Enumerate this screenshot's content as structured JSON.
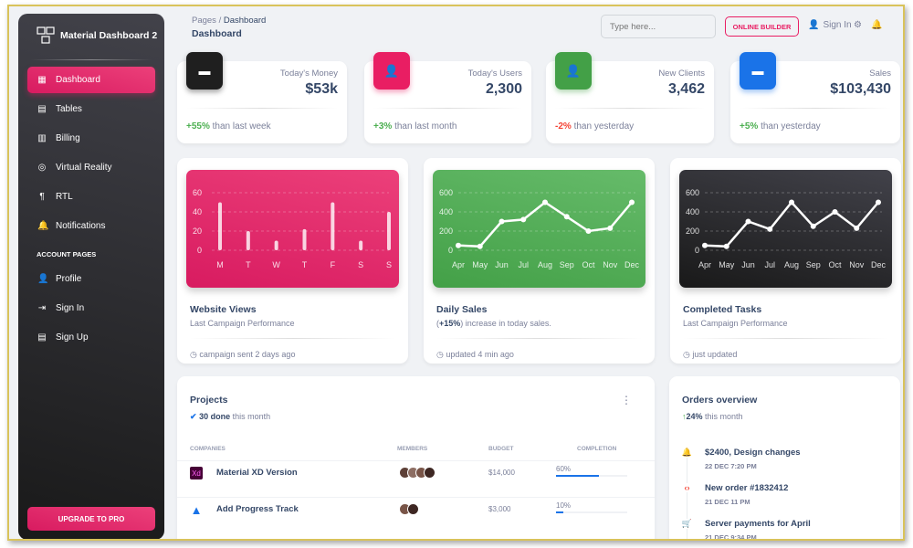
{
  "sidebar": {
    "brand": "Material Dashboard 2",
    "items": [
      {
        "label": "Dashboard",
        "icon": "dashboard-icon",
        "glyph": "▦"
      },
      {
        "label": "Tables",
        "icon": "table-icon",
        "glyph": "▤"
      },
      {
        "label": "Billing",
        "icon": "receipt-icon",
        "glyph": "▥"
      },
      {
        "label": "Virtual Reality",
        "icon": "vr-icon",
        "glyph": "◎"
      },
      {
        "label": "RTL",
        "icon": "rtl-icon",
        "glyph": "¶"
      },
      {
        "label": "Notifications",
        "icon": "bell-icon",
        "glyph": "🔔"
      }
    ],
    "section": "ACCOUNT PAGES",
    "account_items": [
      {
        "label": "Profile",
        "icon": "person-icon",
        "glyph": "👤"
      },
      {
        "label": "Sign In",
        "icon": "login-icon",
        "glyph": "⇥"
      },
      {
        "label": "Sign Up",
        "icon": "assignment-icon",
        "glyph": "▤"
      }
    ],
    "upgrade": "UPGRADE TO PRO"
  },
  "header": {
    "breadcrumb_root": "Pages",
    "breadcrumb_sep": "/",
    "breadcrumb_current": "Dashboard",
    "title": "Dashboard",
    "search_placeholder": "Type here...",
    "builder": "ONLINE BUILDER",
    "sign_in": "Sign In"
  },
  "stats": [
    {
      "label": "Today's Money",
      "value": "$53k",
      "change": "+55%",
      "suffix": " than last week",
      "color": "#1f1f1f",
      "icon": "weekend-icon"
    },
    {
      "label": "Today's Users",
      "value": "2,300",
      "change": "+3%",
      "suffix": " than last month",
      "color": "#e91e63",
      "icon": "person-icon"
    },
    {
      "label": "New Clients",
      "value": "3,462",
      "change": "-2%",
      "suffix": " than yesterday",
      "color": "#43a047",
      "icon": "person-icon"
    },
    {
      "label": "Sales",
      "value": "$103,430",
      "change": "+5%",
      "suffix": " than yesterday",
      "color": "#1a73e8",
      "icon": "weekend-icon"
    }
  ],
  "charts_meta": [
    {
      "title": "Website Views",
      "sub": "Last Campaign Performance",
      "footer": "campaign sent 2 days ago"
    },
    {
      "title": "Daily Sales",
      "sub_prefix": "(",
      "sub_bold": "+15%",
      "sub_rest": ") increase in today sales.",
      "footer": "updated 4 min ago"
    },
    {
      "title": "Completed Tasks",
      "sub": "Last Campaign Performance",
      "footer": "just updated"
    }
  ],
  "chart_data": [
    {
      "type": "bar",
      "title": "Website Views",
      "categories": [
        "M",
        "T",
        "W",
        "T",
        "F",
        "S",
        "S"
      ],
      "values": [
        50,
        20,
        10,
        22,
        50,
        10,
        40
      ],
      "ylim": [
        0,
        60
      ],
      "yticks": [
        "0",
        "20",
        "40",
        "60"
      ],
      "color": "#e91e63"
    },
    {
      "type": "line",
      "title": "Daily Sales",
      "categories": [
        "Apr",
        "May",
        "Jun",
        "Jul",
        "Aug",
        "Sep",
        "Oct",
        "Nov",
        "Dec"
      ],
      "values": [
        50,
        40,
        300,
        320,
        500,
        350,
        200,
        230,
        500
      ],
      "ylim": [
        0,
        600
      ],
      "yticks": [
        "0",
        "200",
        "400",
        "600"
      ],
      "color": "#4caf50"
    },
    {
      "type": "line",
      "title": "Completed Tasks",
      "categories": [
        "Apr",
        "May",
        "Jun",
        "Jul",
        "Aug",
        "Sep",
        "Oct",
        "Nov",
        "Dec"
      ],
      "values": [
        50,
        40,
        300,
        220,
        500,
        250,
        400,
        230,
        500
      ],
      "ylim": [
        0,
        600
      ],
      "yticks": [
        "0",
        "200",
        "400",
        "600"
      ],
      "color": "#262626"
    }
  ],
  "projects": {
    "title": "Projects",
    "done": "30 done",
    "done_rest": " this month",
    "cols": [
      "COMPANIES",
      "MEMBERS",
      "BUDGET",
      "COMPLETION"
    ],
    "rows": [
      {
        "name": "Material XD Version",
        "logo": "Xd",
        "budget": "$14,000",
        "completion": "60%",
        "pct": 60,
        "members": 4
      },
      {
        "name": "Add Progress Track",
        "logo": "▲",
        "budget": "$3,000",
        "completion": "10%",
        "pct": 10,
        "members": 2
      }
    ]
  },
  "orders": {
    "title": "Orders overview",
    "pct": "24%",
    "rest": " this month",
    "items": [
      {
        "title": "$2400, Design changes",
        "date": "22 DEC 7:20 PM",
        "icon": "bell-icon",
        "glyph": "🔔",
        "color": "#4caf50"
      },
      {
        "title": "New order #1832412",
        "date": "21 DEC 11 PM",
        "icon": "code-icon",
        "glyph": "‹›",
        "color": "#f44335"
      },
      {
        "title": "Server payments for April",
        "date": "21 DEC 9:34 PM",
        "icon": "cart-icon",
        "glyph": "🛒",
        "color": "#1a73e8"
      }
    ]
  }
}
